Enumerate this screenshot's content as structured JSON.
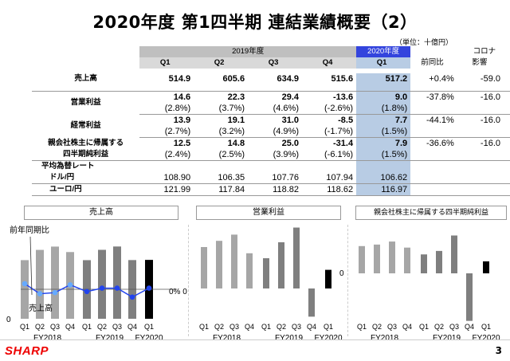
{
  "title": "2020年度 第1四半期 連結業績概要（2）",
  "unit": "（単位：十億円）",
  "table": {
    "year2019": "2019年度",
    "year2020": "2020年度",
    "corona_header": "コロナ",
    "corona_header2": "影響",
    "quarters": [
      "Q1",
      "Q2",
      "Q3",
      "Q4"
    ],
    "q2020": "Q1",
    "yoy_header": "前同比",
    "rows": [
      {
        "label": "売上高",
        "label2": "",
        "v": [
          "514.9",
          "605.6",
          "634.9",
          "515.6"
        ],
        "v2020": "517.2",
        "yoy": "+0.4%",
        "corona": "-59.0",
        "p": [
          "",
          "",
          "",
          ""
        ],
        "p2020": ""
      },
      {
        "label": "営業利益",
        "label2": "",
        "v": [
          "14.6",
          "22.3",
          "29.4",
          "-13.6"
        ],
        "v2020": "9.0",
        "yoy": "-37.8%",
        "corona": "-16.0",
        "p": [
          "(2.8%)",
          "(3.7%)",
          "(4.6%)",
          "(-2.6%)"
        ],
        "p2020": "(1.8%)"
      },
      {
        "label": "経常利益",
        "label2": "",
        "v": [
          "13.9",
          "19.1",
          "31.0",
          "-8.5"
        ],
        "v2020": "7.7",
        "yoy": "-44.1%",
        "corona": "-16.0",
        "p": [
          "(2.7%)",
          "(3.2%)",
          "(4.9%)",
          "(-1.7%)"
        ],
        "p2020": "(1.5%)"
      },
      {
        "label": "親会社株主に帰属する",
        "label2": "四半期純利益",
        "v": [
          "12.5",
          "14.8",
          "25.0",
          "-31.4"
        ],
        "v2020": "7.9",
        "yoy": "-36.6%",
        "corona": "-16.0",
        "p": [
          "(2.4%)",
          "(2.5%)",
          "(3.9%)",
          "(-6.1%)"
        ],
        "p2020": "(1.5%)"
      }
    ],
    "fx_header": "平均為替レート",
    "fx": [
      {
        "label": "ドル/円",
        "v": [
          "108.90",
          "106.35",
          "107.76",
          "107.94"
        ],
        "v2020": "106.62"
      },
      {
        "label": "ユーロ/円",
        "v": [
          "121.99",
          "117.84",
          "118.82",
          "118.62"
        ],
        "v2020": "116.97"
      }
    ]
  },
  "charts": {
    "sales_title": "売上高",
    "op_title": "営業利益",
    "net_title": "親会社株主に帰属する四半期純利益",
    "yoy_label": "前年同期比",
    "sales_line_label": "売上高",
    "zero_pct": "0% 0",
    "zero": "0",
    "q_labels": [
      "Q1",
      "Q2",
      "Q3",
      "Q4"
    ],
    "fy2018": "FY2018",
    "fy2019": "FY2019",
    "fy2020": "FY2020",
    "fy2020_q": "Q1"
  },
  "chart_data": [
    {
      "type": "bar",
      "title": "売上高",
      "categories": [
        "FY2018 Q1",
        "FY2018 Q2",
        "FY2018 Q3",
        "FY2018 Q4",
        "FY2019 Q1",
        "FY2019 Q2",
        "FY2019 Q3",
        "FY2019 Q4",
        "FY2020 Q1"
      ],
      "series": [
        {
          "name": "売上高",
          "values": [
            515,
            605,
            634,
            586,
            514.9,
            605.6,
            634.9,
            515.6,
            517.2
          ]
        }
      ],
      "line": {
        "name": "前年同期比",
        "values": [
          0.5,
          -0.4,
          -0.3,
          0.4,
          -0.2,
          0.1,
          0.1,
          -0.7,
          0.1
        ]
      }
    },
    {
      "type": "bar",
      "title": "営業利益",
      "categories": [
        "FY2018 Q1",
        "FY2018 Q2",
        "FY2018 Q3",
        "FY2018 Q4",
        "FY2019 Q1",
        "FY2019 Q2",
        "FY2019 Q3",
        "FY2019 Q4",
        "FY2020 Q1"
      ],
      "series": [
        {
          "name": "営業利益",
          "values": [
            20,
            23,
            26,
            17,
            14.6,
            22.3,
            29.4,
            -13.6,
            9.0
          ]
        }
      ]
    },
    {
      "type": "bar",
      "title": "親会社株主に帰属する四半期純利益",
      "categories": [
        "FY2018 Q1",
        "FY2018 Q2",
        "FY2018 Q3",
        "FY2018 Q4",
        "FY2019 Q1",
        "FY2019 Q2",
        "FY2019 Q3",
        "FY2019 Q4",
        "FY2020 Q1"
      ],
      "series": [
        {
          "name": "純利益",
          "values": [
            18,
            19,
            21,
            17,
            12.5,
            14.8,
            25.0,
            -31.4,
            7.9
          ]
        }
      ]
    }
  ],
  "footer": {
    "brand": "SHARP",
    "page": "3"
  },
  "colors": {
    "hl_blue": "#b8cce4",
    "hdr_blue": "#3344dd",
    "bar_light": "#a6a6a6",
    "bar_mid": "#7f7f7f",
    "bar_dark": "#000000",
    "line": "#2244ee",
    "brand": "#e00000"
  }
}
